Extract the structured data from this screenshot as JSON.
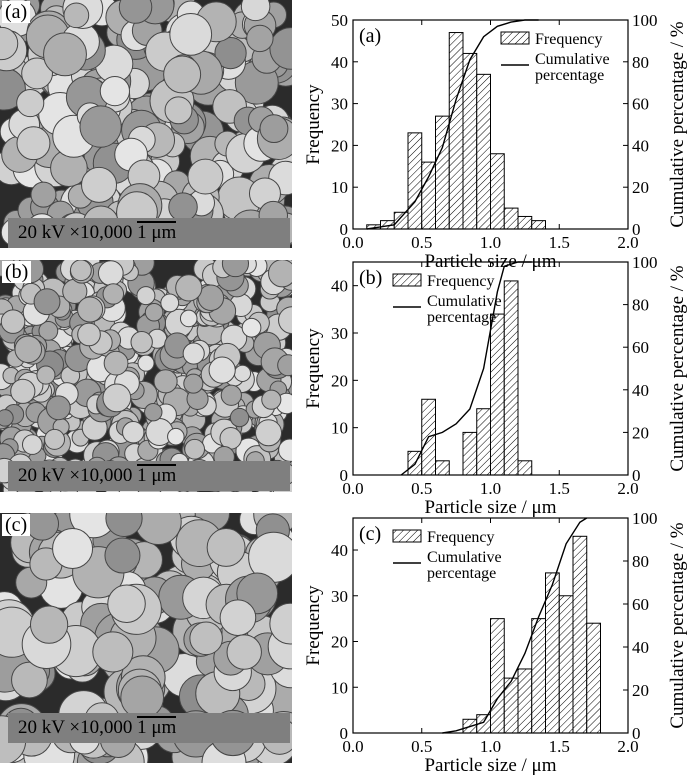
{
  "sem_images": [
    {
      "tag": "(a)",
      "label": "20 kV ×10,000",
      "scale": "1 μm"
    },
    {
      "tag": "(b)",
      "label": "20 kV ×10,000",
      "scale": "1 μm"
    },
    {
      "tag": "(c)",
      "label": "20 kV ×10,000",
      "scale": "1 μm"
    }
  ],
  "chart_data": [
    {
      "type": "bar",
      "panel": "(a)",
      "xlabel": "Particle size / μm",
      "ylabel": "Frequency",
      "y2label": "Cumulative percentage / %",
      "xlim": [
        0.0,
        2.0
      ],
      "ylim": [
        0,
        50
      ],
      "y2lim": [
        0,
        100
      ],
      "xticks": [
        "0.0",
        "0.5",
        "1.0",
        "1.5",
        "2.0"
      ],
      "yticks": [
        "0",
        "10",
        "20",
        "30",
        "40",
        "50"
      ],
      "y2ticks": [
        "0",
        "20",
        "40",
        "60",
        "80",
        "100"
      ],
      "legend": {
        "placement": "top-right",
        "bar": "Frequency",
        "line": "Cumulative percentage"
      },
      "bin_width": 0.1,
      "bins": [
        0.1,
        0.2,
        0.3,
        0.4,
        0.5,
        0.6,
        0.7,
        0.8,
        0.9,
        1.0,
        1.1,
        1.2,
        1.3
      ],
      "frequency": [
        1,
        2,
        4,
        23,
        16,
        27,
        47,
        42,
        37,
        18,
        5,
        3,
        2
      ],
      "cumulative": {
        "x": [
          0.1,
          0.3,
          0.45,
          0.55,
          0.65,
          0.75,
          0.85,
          0.95,
          1.05,
          1.15,
          1.25,
          1.35
        ],
        "y": [
          0,
          2,
          13,
          25,
          39,
          62,
          81,
          92,
          97,
          99,
          100,
          100
        ]
      }
    },
    {
      "type": "bar",
      "panel": "(b)",
      "xlabel": "Particle size / μm",
      "ylabel": "Frequency",
      "y2label": "Cumulative percentage / %",
      "xlim": [
        0.0,
        2.0
      ],
      "ylim": [
        0,
        45
      ],
      "y2lim": [
        0,
        100
      ],
      "xticks": [
        "0.0",
        "0.5",
        "1.0",
        "1.5",
        "2.0"
      ],
      "yticks": [
        "0",
        "10",
        "20",
        "30",
        "40"
      ],
      "y2ticks": [
        "0",
        "20",
        "40",
        "60",
        "80",
        "100"
      ],
      "legend": {
        "placement": "top-left",
        "bar": "Frequency",
        "line": "Cumulative percentage"
      },
      "bin_width": 0.1,
      "bins": [
        0.4,
        0.5,
        0.6,
        0.8,
        0.9,
        1.0,
        1.1,
        1.2
      ],
      "frequency": [
        5,
        16,
        3,
        9,
        14,
        34,
        41,
        3
      ],
      "cumulative": {
        "x": [
          0.35,
          0.45,
          0.55,
          0.65,
          0.75,
          0.85,
          0.95,
          1.05,
          1.1,
          1.2,
          1.3
        ],
        "y": [
          0,
          5,
          18,
          20,
          24,
          31,
          50,
          86,
          98,
          100,
          100
        ]
      }
    },
    {
      "type": "bar",
      "panel": "(c)",
      "xlabel": "Particle size / μm",
      "ylabel": "Frequency",
      "y2label": "Cumulative percentage / %",
      "xlim": [
        0.0,
        2.0
      ],
      "ylim": [
        0,
        47
      ],
      "y2lim": [
        0,
        100
      ],
      "xticks": [
        "0.0",
        "0.5",
        "1.0",
        "1.5",
        "2.0"
      ],
      "yticks": [
        "0",
        "10",
        "20",
        "30",
        "40"
      ],
      "y2ticks": [
        "0",
        "20",
        "40",
        "60",
        "80",
        "100"
      ],
      "legend": {
        "placement": "top-left",
        "bar": "Frequency",
        "line": "Cumulative percentage"
      },
      "bin_width": 0.1,
      "bins": [
        0.8,
        0.9,
        1.0,
        1.1,
        1.2,
        1.3,
        1.4,
        1.5,
        1.6,
        1.7
      ],
      "frequency": [
        3,
        4,
        25,
        12,
        14,
        25,
        35,
        30,
        43,
        24
      ],
      "cumulative": {
        "x": [
          0.65,
          0.75,
          0.85,
          0.95,
          1.05,
          1.15,
          1.25,
          1.35,
          1.45,
          1.55,
          1.65,
          1.7
        ],
        "y": [
          0,
          1,
          3,
          5,
          16,
          24,
          37,
          54,
          69,
          88,
          98,
          100
        ]
      }
    }
  ]
}
